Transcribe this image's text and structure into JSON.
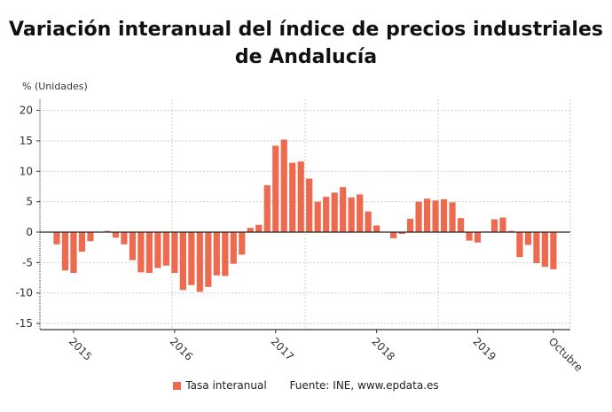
{
  "chart_data": {
    "type": "bar",
    "title": "Variación interanual del índice de precios industriales de Andalucía",
    "ylabel": "% (Unidades)",
    "ylim": [
      -16,
      22
    ],
    "yticks": [
      -15,
      -10,
      -5,
      0,
      5,
      10,
      15,
      20
    ],
    "xtick_labels": [
      "2015",
      "2016",
      "2017",
      "2018",
      "2019",
      "Octubre"
    ],
    "first_month": "2014-11",
    "last_month": "2019-10",
    "grid": true,
    "legend_position": "bottom",
    "bar_color": "#ee6a4f",
    "series": [
      {
        "name": "Tasa interanual",
        "values": [
          -2.0,
          -6.3,
          -6.7,
          -3.2,
          -1.5,
          0.0,
          0.2,
          -0.9,
          -2.0,
          -4.6,
          -6.6,
          -6.7,
          -5.9,
          -5.5,
          -6.7,
          -9.5,
          -8.7,
          -9.8,
          -9.0,
          -7.1,
          -7.2,
          -5.2,
          -3.7,
          0.7,
          1.2,
          7.7,
          14.2,
          15.2,
          11.4,
          11.6,
          8.8,
          5.0,
          5.8,
          6.5,
          7.4,
          5.7,
          6.2,
          3.4,
          1.1,
          0.0,
          -1.0,
          -0.3,
          2.2,
          5.0,
          5.5,
          5.2,
          5.4,
          4.9,
          2.3,
          -1.4,
          -1.7,
          0.1,
          2.1,
          2.4,
          0.2,
          -4.1,
          -2.1,
          -5.1,
          -5.7,
          -6.1
        ]
      }
    ],
    "source": "Fuente: INE, www.epdata.es"
  }
}
